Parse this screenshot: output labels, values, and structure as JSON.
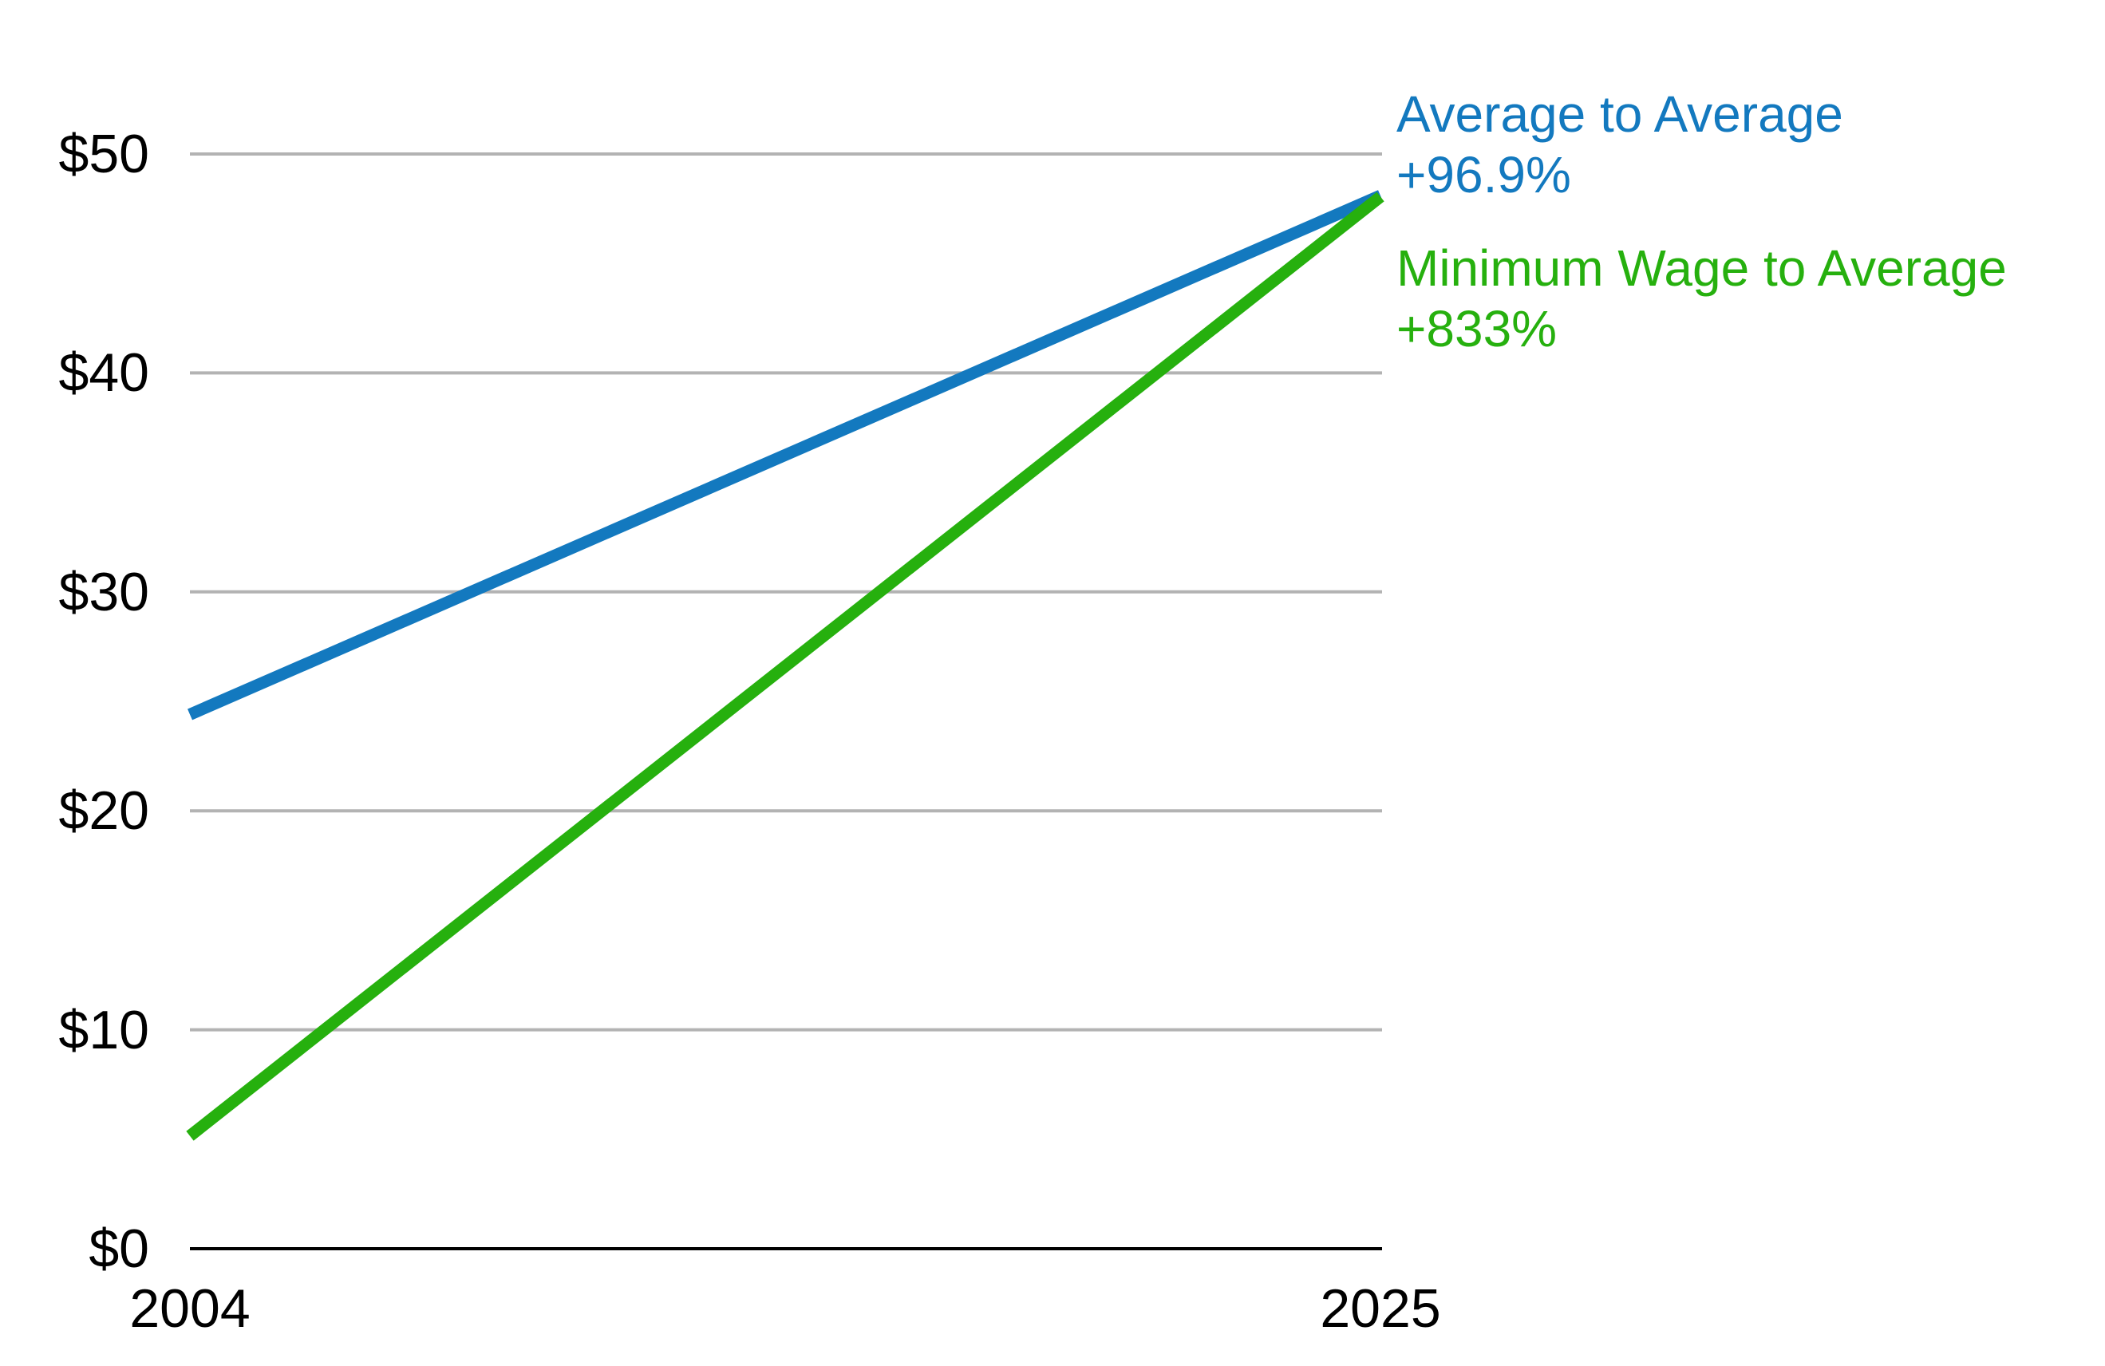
{
  "chart_data": {
    "type": "line",
    "title": "",
    "xlabel": "",
    "ylabel": "",
    "x": [
      2004,
      2025
    ],
    "x_tick_labels": [
      "2004",
      "2025"
    ],
    "y_ticks": [
      {
        "value": 0,
        "label": "$0"
      },
      {
        "value": 10,
        "label": "$10"
      },
      {
        "value": 20,
        "label": "$20"
      },
      {
        "value": 30,
        "label": "$30"
      },
      {
        "value": 40,
        "label": "$40"
      },
      {
        "value": 50,
        "label": "$50"
      }
    ],
    "ylim": [
      0,
      50
    ],
    "grid": "horizontal",
    "legend_position": "right-of-line-endpoints",
    "series": [
      {
        "name": "Average to Average",
        "annotation": "+96.9%",
        "values": [
          24.4,
          48.1
        ],
        "color": "#1379bf"
      },
      {
        "name": "Minimum Wage to Average",
        "annotation": "+833%",
        "values": [
          5.15,
          48.05
        ],
        "color": "#26b00e"
      }
    ],
    "colors": {
      "gridline": "#b3b3b3",
      "axis_line": "#000000",
      "tick_text": "#000000",
      "background": "#ffffff"
    }
  }
}
